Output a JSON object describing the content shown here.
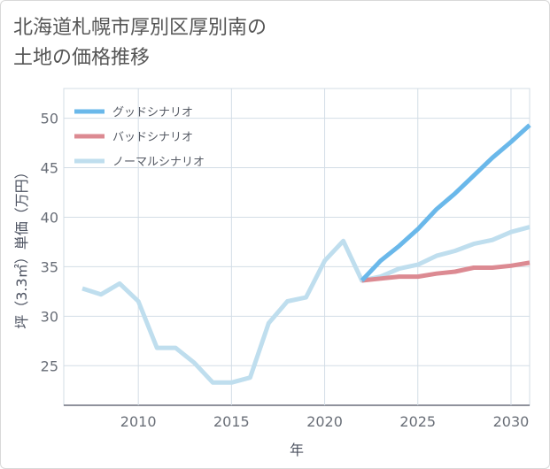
{
  "title_lines": [
    "北海道札幌市厚別区厚別南の",
    "土地の価格推移"
  ],
  "colors": {
    "good": "#6ab8ea",
    "bad": "#dc8a92",
    "normal": "#bfdeee",
    "grid": "#d3dde6",
    "axis": "#4c5260"
  },
  "chart_data": {
    "type": "line",
    "title": "北海道札幌市厚別区厚別南の土地の価格推移",
    "xlabel": "年",
    "ylabel": "坪（3.3㎡）単価（万円）",
    "xlim": [
      2006,
      2031
    ],
    "ylim": [
      21,
      53
    ],
    "xticks": [
      2010,
      2015,
      2020,
      2025,
      2030
    ],
    "yticks": [
      25,
      30,
      35,
      40,
      45,
      50
    ],
    "grid": true,
    "legend_position": "top-left",
    "series": [
      {
        "key": "good",
        "name": "グッドシナリオ",
        "x": [
          2022,
          2023,
          2024,
          2025,
          2026,
          2027,
          2028,
          2029,
          2030,
          2031
        ],
        "values": [
          33.6,
          35.6,
          37.1,
          38.8,
          40.8,
          42.4,
          44.2,
          46.0,
          47.6,
          49.3
        ]
      },
      {
        "key": "bad",
        "name": "バッドシナリオ",
        "x": [
          2022,
          2023,
          2024,
          2025,
          2026,
          2027,
          2028,
          2029,
          2030,
          2031
        ],
        "values": [
          33.6,
          33.8,
          34.0,
          34.0,
          34.3,
          34.5,
          34.9,
          34.9,
          35.1,
          35.4
        ]
      },
      {
        "key": "normal",
        "name": "ノーマルシナリオ",
        "x": [
          2007,
          2008,
          2009,
          2010,
          2011,
          2012,
          2013,
          2014,
          2015,
          2016,
          2017,
          2018,
          2019,
          2020,
          2021,
          2022,
          2023,
          2024,
          2025,
          2026,
          2027,
          2028,
          2029,
          2030,
          2031
        ],
        "values": [
          32.8,
          32.2,
          33.3,
          31.5,
          26.8,
          26.8,
          25.3,
          23.3,
          23.3,
          23.8,
          29.3,
          31.5,
          31.9,
          35.6,
          37.6,
          33.6,
          34.0,
          34.8,
          35.2,
          36.1,
          36.6,
          37.3,
          37.7,
          38.5,
          39.0
        ]
      }
    ]
  }
}
